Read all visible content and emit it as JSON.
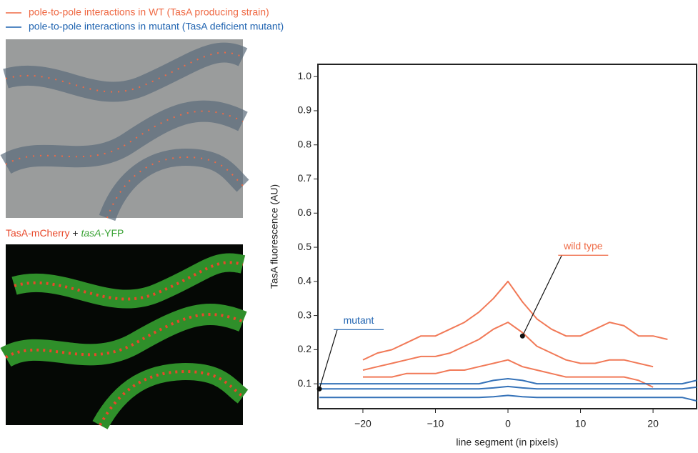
{
  "image_legend": [
    {
      "label": "pole-to-pole interactions in WT (TasA producing strain)",
      "color": "#ef6a45"
    },
    {
      "label": "pole-to-pole interactions in mutant (TasA deficient mutant)",
      "color": "#1f63b0"
    }
  ],
  "caption": [
    {
      "text": "TasA-mCherry",
      "color": "#e8482a",
      "italic": false
    },
    {
      "text": " + ",
      "color": "#222222",
      "italic": false
    },
    {
      "text": "tasA",
      "color": "#3aa335",
      "italic": true
    },
    {
      "text": "-YFP",
      "color": "#3aa335",
      "italic": false
    }
  ],
  "chart_data": {
    "type": "line",
    "x_label": "line segment (in pixels)",
    "y_label": "TasA fluorescence (AU)",
    "x": [
      -26,
      -24,
      -22,
      -20,
      -18,
      -16,
      -14,
      -12,
      -10,
      -8,
      -6,
      -4,
      -2,
      0,
      2,
      4,
      6,
      8,
      10,
      12,
      14,
      16,
      18,
      20,
      22,
      24,
      26
    ],
    "series": [
      {
        "name": "wild type upper",
        "color": "#ef6a45",
        "values": [
          null,
          null,
          null,
          0.17,
          0.19,
          0.2,
          0.22,
          0.24,
          0.24,
          0.26,
          0.28,
          0.31,
          0.35,
          0.4,
          0.34,
          0.29,
          0.26,
          0.24,
          0.24,
          0.26,
          0.28,
          0.27,
          0.24,
          0.24,
          0.23,
          null,
          null
        ]
      },
      {
        "name": "wild type mean",
        "color": "#ef6a45",
        "values": [
          null,
          null,
          null,
          0.14,
          0.15,
          0.16,
          0.17,
          0.18,
          0.18,
          0.19,
          0.21,
          0.23,
          0.26,
          0.28,
          0.25,
          0.21,
          0.19,
          0.17,
          0.16,
          0.16,
          0.17,
          0.17,
          0.16,
          0.15,
          null,
          null,
          null
        ]
      },
      {
        "name": "wild type lower",
        "color": "#ef6a45",
        "values": [
          null,
          null,
          null,
          0.12,
          0.12,
          0.12,
          0.13,
          0.13,
          0.13,
          0.14,
          0.14,
          0.15,
          0.16,
          0.17,
          0.15,
          0.14,
          0.13,
          0.12,
          0.12,
          0.12,
          0.12,
          0.12,
          0.11,
          0.09,
          null,
          null,
          null
        ]
      },
      {
        "name": "mutant upper",
        "color": "#1f63b0",
        "values": [
          0.1,
          0.1,
          0.1,
          0.1,
          0.1,
          0.1,
          0.1,
          0.1,
          0.1,
          0.1,
          0.1,
          0.1,
          0.11,
          0.115,
          0.11,
          0.1,
          0.1,
          0.1,
          0.1,
          0.1,
          0.1,
          0.1,
          0.1,
          0.1,
          0.1,
          0.1,
          0.11
        ]
      },
      {
        "name": "mutant mean",
        "color": "#1f63b0",
        "values": [
          0.085,
          0.085,
          0.085,
          0.085,
          0.085,
          0.085,
          0.085,
          0.085,
          0.085,
          0.085,
          0.085,
          0.085,
          0.088,
          0.092,
          0.088,
          0.085,
          0.085,
          0.085,
          0.085,
          0.085,
          0.085,
          0.085,
          0.085,
          0.085,
          0.085,
          0.085,
          0.09
        ]
      },
      {
        "name": "mutant lower",
        "color": "#1f63b0",
        "values": [
          0.06,
          0.06,
          0.06,
          0.06,
          0.06,
          0.06,
          0.06,
          0.06,
          0.06,
          0.06,
          0.06,
          0.06,
          0.062,
          0.066,
          0.062,
          0.06,
          0.06,
          0.06,
          0.06,
          0.06,
          0.06,
          0.06,
          0.06,
          0.06,
          0.06,
          0.06,
          0.05
        ]
      }
    ],
    "annotations": [
      {
        "text": "wild type",
        "x": 2,
        "y": 0.24,
        "color": "#ef6a45"
      },
      {
        "text": "mutant",
        "x": -26,
        "y": 0.085,
        "color": "#1f63b0"
      }
    ],
    "xlim": [
      -26.2,
      26
    ],
    "ylim": [
      0.027,
      1.036
    ],
    "xticks": [
      -20,
      -10,
      0,
      10,
      20
    ],
    "yticks": [
      0.1,
      0.2,
      0.3,
      0.4,
      0.5,
      0.6,
      0.7,
      0.8,
      0.9,
      {
        "value": 1.0,
        "label": "1.0"
      }
    ]
  }
}
